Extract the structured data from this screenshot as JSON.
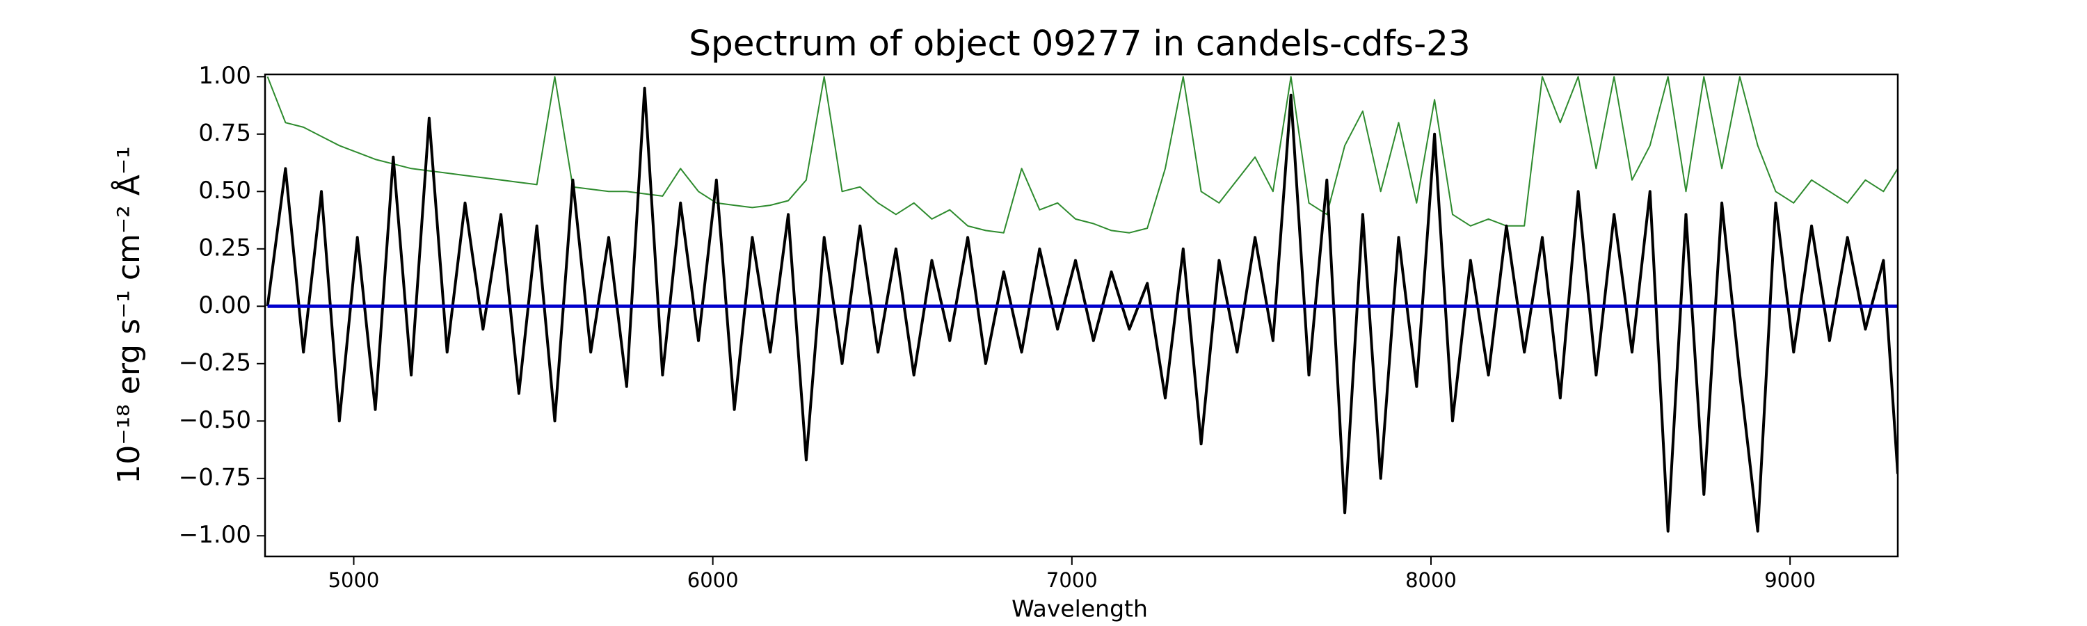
{
  "chart_data": {
    "type": "line",
    "title": "Spectrum of object 09277 in candels-cdfs-23",
    "x_label": "Wavelength",
    "y_label": "10⁻¹⁸ erg s⁻¹ cm⁻² Å⁻¹",
    "xlim": [
      4753,
      9300
    ],
    "ylim": [
      -1.09,
      1.01
    ],
    "xticks": [
      5000,
      6000,
      7000,
      8000,
      9000
    ],
    "yticks": [
      {
        "value": 1,
        "label": "1.00"
      },
      {
        "value": 0.75,
        "label": "0.75"
      },
      {
        "value": 0.5,
        "label": "0.50"
      },
      {
        "value": 0.25,
        "label": "0.25"
      },
      {
        "value": 0,
        "label": "0.00"
      },
      {
        "value": -0.25,
        "label": "−0.25"
      },
      {
        "value": -0.5,
        "label": "−0.50"
      },
      {
        "value": -0.75,
        "label": "−0.75"
      },
      {
        "value": -1,
        "label": "−1.00"
      }
    ],
    "grid": false,
    "x": [
      4760,
      4810,
      4860,
      4910,
      4960,
      5010,
      5060,
      5110,
      5160,
      5210,
      5260,
      5310,
      5360,
      5410,
      5460,
      5510,
      5560,
      5610,
      5660,
      5710,
      5760,
      5810,
      5860,
      5910,
      5960,
      6010,
      6060,
      6110,
      6160,
      6210,
      6260,
      6310,
      6360,
      6410,
      6460,
      6510,
      6560,
      6610,
      6660,
      6710,
      6760,
      6810,
      6860,
      6910,
      6960,
      7010,
      7060,
      7110,
      7160,
      7210,
      7260,
      7310,
      7360,
      7410,
      7460,
      7510,
      7560,
      7610,
      7660,
      7710,
      7760,
      7810,
      7860,
      7910,
      7960,
      8010,
      8060,
      8110,
      8160,
      8210,
      8260,
      8310,
      8360,
      8410,
      8460,
      8510,
      8560,
      8610,
      8660,
      8710,
      8760,
      8810,
      8860,
      8910,
      8960,
      9010,
      9060,
      9110,
      9160,
      9210,
      9260,
      9300
    ],
    "series": [
      {
        "color": "#2e8b2e",
        "width": 2,
        "values": [
          1.0,
          0.8,
          0.78,
          0.74,
          0.7,
          0.67,
          0.64,
          0.62,
          0.6,
          0.59,
          0.58,
          0.57,
          0.56,
          0.55,
          0.54,
          0.53,
          1.0,
          0.52,
          0.51,
          0.5,
          0.5,
          0.49,
          0.48,
          0.6,
          0.5,
          0.45,
          0.44,
          0.43,
          0.44,
          0.46,
          0.55,
          1.0,
          0.5,
          0.52,
          0.45,
          0.4,
          0.45,
          0.38,
          0.42,
          0.35,
          0.33,
          0.32,
          0.6,
          0.42,
          0.45,
          0.38,
          0.36,
          0.33,
          0.32,
          0.34,
          0.6,
          1.0,
          0.5,
          0.45,
          0.55,
          0.65,
          0.5,
          1.0,
          0.45,
          0.4,
          0.7,
          0.85,
          0.5,
          0.8,
          0.45,
          0.9,
          0.4,
          0.35,
          0.38,
          0.35,
          0.35,
          1.0,
          0.8,
          1.0,
          0.6,
          1.0,
          0.55,
          0.7,
          1.0,
          0.5,
          1.0,
          0.6,
          1.0,
          0.7,
          0.5,
          0.45,
          0.55,
          0.5,
          0.45,
          0.55,
          0.5,
          0.6
        ]
      },
      {
        "color": "#000000",
        "width": 4,
        "values": [
          0.0,
          0.6,
          -0.2,
          0.5,
          -0.5,
          0.3,
          -0.45,
          0.65,
          -0.3,
          0.82,
          -0.2,
          0.45,
          -0.1,
          0.4,
          -0.38,
          0.35,
          -0.5,
          0.55,
          -0.2,
          0.3,
          -0.35,
          0.95,
          -0.3,
          0.45,
          -0.15,
          0.55,
          -0.45,
          0.3,
          -0.2,
          0.4,
          -0.67,
          0.3,
          -0.25,
          0.35,
          -0.2,
          0.25,
          -0.3,
          0.2,
          -0.15,
          0.3,
          -0.25,
          0.15,
          -0.2,
          0.25,
          -0.1,
          0.2,
          -0.15,
          0.15,
          -0.1,
          0.1,
          -0.4,
          0.25,
          -0.6,
          0.2,
          -0.2,
          0.3,
          -0.15,
          0.92,
          -0.3,
          0.55,
          -0.9,
          0.4,
          -0.75,
          0.3,
          -0.35,
          0.75,
          -0.5,
          0.2,
          -0.3,
          0.35,
          -0.2,
          0.3,
          -0.4,
          0.5,
          -0.3,
          0.4,
          -0.2,
          0.5,
          -0.98,
          0.4,
          -0.82,
          0.45,
          -0.3,
          -0.98,
          0.45,
          -0.2,
          0.35,
          -0.15,
          0.3,
          -0.1,
          0.2,
          -0.73
        ]
      },
      {
        "color": "#0000cc",
        "width": 5,
        "values": [
          0,
          0,
          0,
          0,
          0,
          0,
          0,
          0,
          0,
          0,
          0,
          0,
          0,
          0,
          0,
          0,
          0,
          0,
          0,
          0,
          0,
          0,
          0,
          0,
          0,
          0,
          0,
          0,
          0,
          0,
          0,
          0,
          0,
          0,
          0,
          0,
          0,
          0,
          0,
          0,
          0,
          0,
          0,
          0,
          0,
          0,
          0,
          0,
          0,
          0,
          0,
          0,
          0,
          0,
          0,
          0,
          0,
          0,
          0,
          0,
          0,
          0,
          0,
          0,
          0,
          0,
          0,
          0,
          0,
          0,
          0,
          0,
          0,
          0,
          0,
          0,
          0,
          0,
          0,
          0,
          0,
          0,
          0,
          0,
          0,
          0,
          0,
          0,
          0,
          0,
          0,
          0
        ]
      }
    ]
  }
}
